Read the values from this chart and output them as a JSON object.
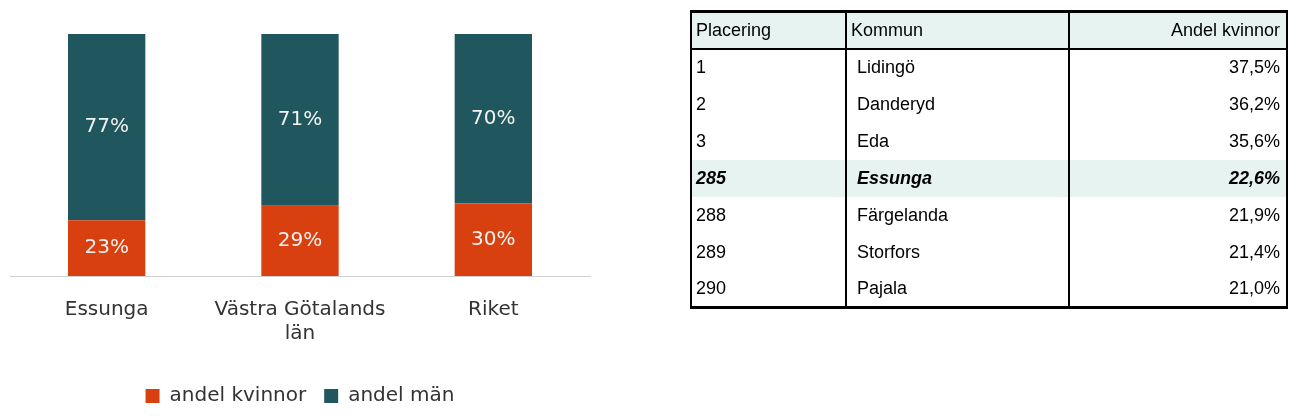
{
  "chart_data": [
    {
      "type": "bar",
      "stacked": true,
      "categories": [
        "Essunga",
        "Västra Götalands län",
        "Riket"
      ],
      "series": [
        {
          "name": "andel kvinnor",
          "color": "#d9400f",
          "values": [
            23,
            29,
            30
          ],
          "value_labels": [
            "23%",
            "29%",
            "30%"
          ]
        },
        {
          "name": "andel män",
          "color": "#20565e",
          "values": [
            77,
            71,
            70
          ],
          "value_labels": [
            "77%",
            "71%",
            "70%"
          ]
        }
      ],
      "legend": "bottom",
      "tick_labels": "x"
    },
    {
      "type": "other",
      "annotations": [
        "Placering",
        "Kommun",
        "Andel kvinnor",
        "1",
        "Lidingö",
        "37,5%",
        "2",
        "Danderyd",
        "36,2%",
        "3",
        "Eda",
        "35,6%",
        "285",
        "Essunga",
        "22,6%",
        "288",
        "Färgelanda",
        "21,9%",
        "289",
        "Storfors",
        "21,4%",
        "290",
        "Pajala",
        "21,0%"
      ]
    }
  ]
}
